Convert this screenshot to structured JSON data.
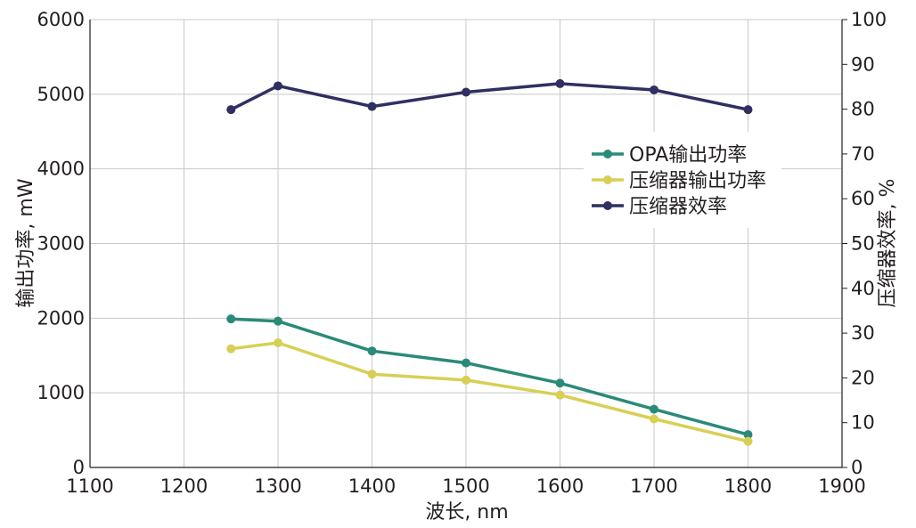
{
  "chart_data": {
    "type": "line",
    "x": [
      1250,
      1300,
      1400,
      1500,
      1600,
      1700,
      1800
    ],
    "xlabel": "波长, nm",
    "ylabel": "输出功率, mW",
    "y2label": "压缩器效率, %",
    "xlim": [
      1100,
      1900
    ],
    "ylim": [
      0,
      6000
    ],
    "y2lim": [
      0,
      100
    ],
    "xticks": [
      "1100",
      "1200",
      "1300",
      "1400",
      "1500",
      "1600",
      "1700",
      "1800",
      "1900"
    ],
    "yticks": [
      "0",
      "1000",
      "2000",
      "3000",
      "4000",
      "5000",
      "6000"
    ],
    "y2ticks": [
      "0",
      "10",
      "20",
      "30",
      "40",
      "50",
      "60",
      "70",
      "80",
      "90",
      "100"
    ],
    "grid": true,
    "legend_position": "right, middle-upper",
    "series": [
      {
        "name": "OPA输出功率",
        "axis": "left",
        "color": "#2a8a78",
        "values": [
          1990,
          1960,
          1560,
          1400,
          1130,
          780,
          440
        ]
      },
      {
        "name": "压缩器输出功率",
        "axis": "left",
        "color": "#d8cf55",
        "values": [
          1590,
          1670,
          1250,
          1170,
          970,
          650,
          350
        ]
      },
      {
        "name": "压缩器效率",
        "axis": "right",
        "color": "#2f3061",
        "values": [
          79.9,
          85.2,
          80.6,
          83.8,
          85.7,
          84.3,
          79.9
        ]
      }
    ]
  }
}
